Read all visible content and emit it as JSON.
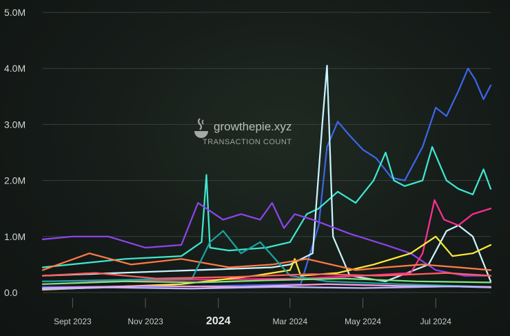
{
  "watermark": {
    "brand": "growthepie.xyz",
    "metric": "TRANSACTION COUNT"
  },
  "chart_data": {
    "type": "line",
    "title": "",
    "ylabel": "",
    "xlabel": "",
    "ylim": [
      0,
      5000000
    ],
    "y_ticks": [
      0,
      1000000,
      2000000,
      3000000,
      4000000,
      5000000
    ],
    "y_tick_labels": [
      "0.0",
      "1.0M",
      "2.0M",
      "3.0M",
      "4.0M",
      "5.0M"
    ],
    "x_range": [
      "2023-08-07",
      "2024-08-16"
    ],
    "x_ticks": [
      {
        "date": "2023-09-01",
        "label": "Sept 2023"
      },
      {
        "date": "2023-11-01",
        "label": "Nov 2023"
      },
      {
        "date": "2024-01-01",
        "label": "2024",
        "emphasis": true
      },
      {
        "date": "2024-03-01",
        "label": "Mar 2024"
      },
      {
        "date": "2024-05-01",
        "label": "May 2024"
      },
      {
        "date": "2024-07-01",
        "label": "Jul 2024"
      }
    ],
    "grid": true,
    "legend": "none",
    "series": [
      {
        "color": "#3b66e8",
        "x": [
          "2023-08-07",
          "2023-12-15",
          "2024-03-10",
          "2024-03-25",
          "2024-04-01",
          "2024-04-10",
          "2024-04-20",
          "2024-05-01",
          "2024-05-12",
          "2024-05-25",
          "2024-06-05",
          "2024-06-20",
          "2024-07-01",
          "2024-07-10",
          "2024-07-20",
          "2024-07-28",
          "2024-08-03",
          "2024-08-10",
          "2024-08-16"
        ],
        "values": [
          100000,
          110000,
          150000,
          1200000,
          2600000,
          3050000,
          2800000,
          2550000,
          2400000,
          2050000,
          2000000,
          2600000,
          3300000,
          3150000,
          3600000,
          4000000,
          3800000,
          3450000,
          3700000
        ]
      },
      {
        "color": "#3fe6cf",
        "x": [
          "2023-08-07",
          "2023-10-15",
          "2023-12-01",
          "2023-12-18",
          "2023-12-22",
          "2023-12-25",
          "2024-01-10",
          "2024-02-10",
          "2024-03-01",
          "2024-03-15",
          "2024-03-25",
          "2024-04-10",
          "2024-04-25",
          "2024-05-10",
          "2024-05-20",
          "2024-05-27",
          "2024-06-05",
          "2024-06-20",
          "2024-06-28",
          "2024-07-10",
          "2024-07-20",
          "2024-08-01",
          "2024-08-10",
          "2024-08-16"
        ],
        "values": [
          450000,
          600000,
          650000,
          900000,
          2100000,
          800000,
          750000,
          800000,
          900000,
          1400000,
          1500000,
          1800000,
          1600000,
          2000000,
          2500000,
          2000000,
          1900000,
          2000000,
          2600000,
          2000000,
          1850000,
          1750000,
          2200000,
          1850000
        ]
      },
      {
        "color": "#c9f4ff",
        "x": [
          "2023-08-07",
          "2024-02-15",
          "2024-03-01",
          "2024-03-20",
          "2024-03-28",
          "2024-04-01",
          "2024-04-06",
          "2024-04-20",
          "2024-05-20",
          "2024-06-25",
          "2024-07-10",
          "2024-07-20",
          "2024-08-01",
          "2024-08-16"
        ],
        "values": [
          300000,
          450000,
          500000,
          700000,
          3000000,
          4050000,
          1000000,
          300000,
          200000,
          500000,
          1100000,
          1200000,
          1000000,
          200000
        ]
      },
      {
        "color": "#8e44ec",
        "x": [
          "2023-08-07",
          "2023-09-01",
          "2023-10-01",
          "2023-11-01",
          "2023-12-01",
          "2023-12-15",
          "2024-01-05",
          "2024-01-20",
          "2024-02-05",
          "2024-02-15",
          "2024-02-25",
          "2024-03-05",
          "2024-03-20",
          "2024-04-20",
          "2024-05-20",
          "2024-06-10",
          "2024-07-01",
          "2024-07-25",
          "2024-08-16"
        ],
        "values": [
          950000,
          1000000,
          1000000,
          800000,
          850000,
          1600000,
          1300000,
          1400000,
          1300000,
          1600000,
          1150000,
          1400000,
          1300000,
          1050000,
          850000,
          700000,
          400000,
          300000,
          300000
        ]
      },
      {
        "color": "#ff2f92",
        "x": [
          "2023-08-07",
          "2024-03-10",
          "2024-05-01",
          "2024-06-10",
          "2024-06-20",
          "2024-06-30",
          "2024-07-08",
          "2024-07-20",
          "2024-08-01",
          "2024-08-16"
        ],
        "values": [
          200000,
          250000,
          300000,
          350000,
          700000,
          1650000,
          1300000,
          1200000,
          1400000,
          1500000
        ]
      },
      {
        "color": "#ffe93a",
        "x": [
          "2023-08-07",
          "2023-12-01",
          "2024-02-01",
          "2024-03-01",
          "2024-03-05",
          "2024-03-10",
          "2024-04-10",
          "2024-05-10",
          "2024-06-10",
          "2024-07-01",
          "2024-07-15",
          "2024-08-01",
          "2024-08-16"
        ],
        "values": [
          50000,
          150000,
          300000,
          400000,
          600000,
          300000,
          350000,
          500000,
          700000,
          1000000,
          650000,
          700000,
          850000
        ]
      },
      {
        "color": "#ff7a45",
        "x": [
          "2023-08-07",
          "2023-09-15",
          "2023-10-20",
          "2023-12-01",
          "2024-01-10",
          "2024-02-15",
          "2024-03-15",
          "2024-04-25",
          "2024-05-20",
          "2024-06-20",
          "2024-07-20",
          "2024-08-16"
        ],
        "values": [
          400000,
          700000,
          500000,
          600000,
          450000,
          500000,
          600000,
          400000,
          450000,
          500000,
          450000,
          400000
        ]
      },
      {
        "color": "#1aa3a3",
        "x": [
          "2023-08-07",
          "2023-12-10",
          "2023-12-25",
          "2024-01-05",
          "2024-01-20",
          "2024-02-05",
          "2024-03-01",
          "2024-04-01",
          "2024-06-01",
          "2024-08-16"
        ],
        "values": [
          200000,
          250000,
          900000,
          1100000,
          700000,
          900000,
          300000,
          200000,
          150000,
          100000
        ]
      },
      {
        "color": "#7fe57f",
        "x": [
          "2023-08-07",
          "2023-10-15",
          "2023-12-15",
          "2024-02-15",
          "2024-04-15",
          "2024-06-15",
          "2024-08-16"
        ],
        "values": [
          150000,
          200000,
          180000,
          220000,
          250000,
          200000,
          180000
        ]
      },
      {
        "color": "#ff5d5d",
        "x": [
          "2023-08-07",
          "2023-09-20",
          "2023-11-10",
          "2024-01-15",
          "2024-03-20",
          "2024-05-15",
          "2024-07-10",
          "2024-08-16"
        ],
        "values": [
          300000,
          350000,
          250000,
          280000,
          330000,
          300000,
          350000,
          300000
        ]
      },
      {
        "color": "#ff9edb",
        "x": [
          "2023-08-07",
          "2023-11-01",
          "2024-01-20",
          "2024-04-01",
          "2024-06-01",
          "2024-08-16"
        ],
        "values": [
          80000,
          120000,
          100000,
          150000,
          120000,
          100000
        ]
      },
      {
        "color": "#b8b8ff",
        "x": [
          "2023-08-07",
          "2023-10-01",
          "2023-12-10",
          "2024-02-20",
          "2024-05-01",
          "2024-07-15",
          "2024-08-16"
        ],
        "values": [
          60000,
          90000,
          70000,
          100000,
          80000,
          110000,
          90000
        ]
      }
    ]
  }
}
